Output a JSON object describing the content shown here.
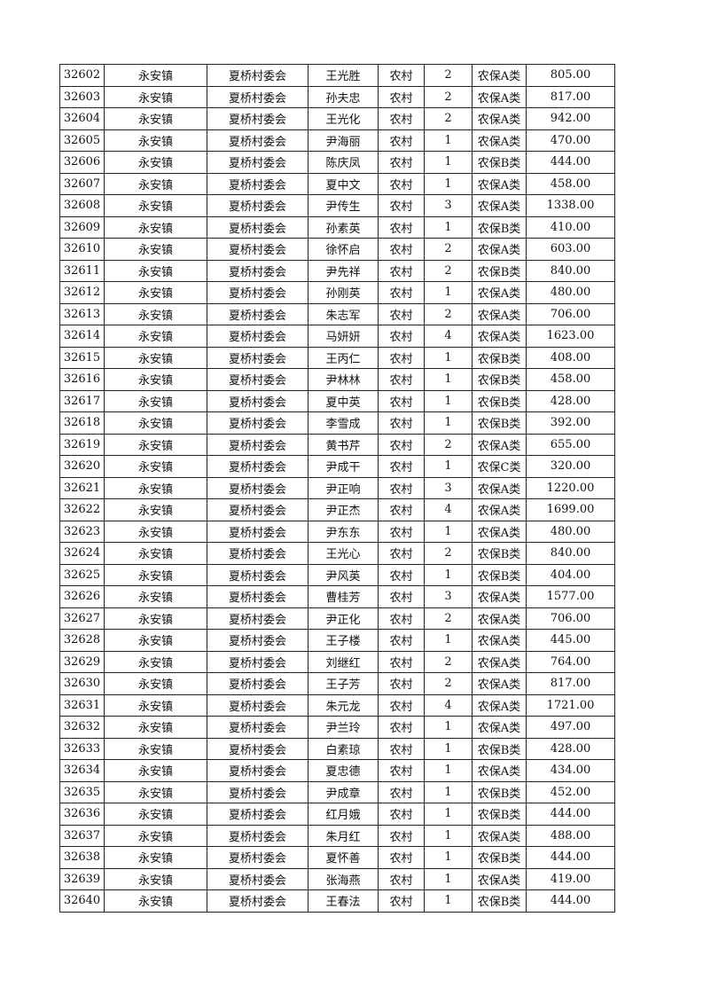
{
  "table": {
    "rows": [
      [
        "32602",
        "永安镇",
        "夏桥村委会",
        "王光胜",
        "农村",
        "2",
        "农保A类",
        "805.00"
      ],
      [
        "32603",
        "永安镇",
        "夏桥村委会",
        "孙夫忠",
        "农村",
        "2",
        "农保A类",
        "817.00"
      ],
      [
        "32604",
        "永安镇",
        "夏桥村委会",
        "王光化",
        "农村",
        "2",
        "农保A类",
        "942.00"
      ],
      [
        "32605",
        "永安镇",
        "夏桥村委会",
        "尹海丽",
        "农村",
        "1",
        "农保A类",
        "470.00"
      ],
      [
        "32606",
        "永安镇",
        "夏桥村委会",
        "陈庆凤",
        "农村",
        "1",
        "农保B类",
        "444.00"
      ],
      [
        "32607",
        "永安镇",
        "夏桥村委会",
        "夏中文",
        "农村",
        "1",
        "农保A类",
        "458.00"
      ],
      [
        "32608",
        "永安镇",
        "夏桥村委会",
        "尹传生",
        "农村",
        "3",
        "农保A类",
        "1338.00"
      ],
      [
        "32609",
        "永安镇",
        "夏桥村委会",
        "孙素英",
        "农村",
        "1",
        "农保B类",
        "410.00"
      ],
      [
        "32610",
        "永安镇",
        "夏桥村委会",
        "徐怀启",
        "农村",
        "2",
        "农保A类",
        "603.00"
      ],
      [
        "32611",
        "永安镇",
        "夏桥村委会",
        "尹先祥",
        "农村",
        "2",
        "农保B类",
        "840.00"
      ],
      [
        "32612",
        "永安镇",
        "夏桥村委会",
        "孙刚英",
        "农村",
        "1",
        "农保A类",
        "480.00"
      ],
      [
        "32613",
        "永安镇",
        "夏桥村委会",
        "朱志军",
        "农村",
        "2",
        "农保A类",
        "706.00"
      ],
      [
        "32614",
        "永安镇",
        "夏桥村委会",
        "马妍妍",
        "农村",
        "4",
        "农保A类",
        "1623.00"
      ],
      [
        "32615",
        "永安镇",
        "夏桥村委会",
        "王丙仁",
        "农村",
        "1",
        "农保B类",
        "408.00"
      ],
      [
        "32616",
        "永安镇",
        "夏桥村委会",
        "尹林林",
        "农村",
        "1",
        "农保B类",
        "458.00"
      ],
      [
        "32617",
        "永安镇",
        "夏桥村委会",
        "夏中英",
        "农村",
        "1",
        "农保B类",
        "428.00"
      ],
      [
        "32618",
        "永安镇",
        "夏桥村委会",
        "李雪成",
        "农村",
        "1",
        "农保B类",
        "392.00"
      ],
      [
        "32619",
        "永安镇",
        "夏桥村委会",
        "黄书芹",
        "农村",
        "2",
        "农保A类",
        "655.00"
      ],
      [
        "32620",
        "永安镇",
        "夏桥村委会",
        "尹成干",
        "农村",
        "1",
        "农保C类",
        "320.00"
      ],
      [
        "32621",
        "永安镇",
        "夏桥村委会",
        "尹正响",
        "农村",
        "3",
        "农保A类",
        "1220.00"
      ],
      [
        "32622",
        "永安镇",
        "夏桥村委会",
        "尹正杰",
        "农村",
        "4",
        "农保A类",
        "1699.00"
      ],
      [
        "32623",
        "永安镇",
        "夏桥村委会",
        "尹东东",
        "农村",
        "1",
        "农保A类",
        "480.00"
      ],
      [
        "32624",
        "永安镇",
        "夏桥村委会",
        "王光心",
        "农村",
        "2",
        "农保B类",
        "840.00"
      ],
      [
        "32625",
        "永安镇",
        "夏桥村委会",
        "尹风英",
        "农村",
        "1",
        "农保B类",
        "404.00"
      ],
      [
        "32626",
        "永安镇",
        "夏桥村委会",
        "曹桂芳",
        "农村",
        "3",
        "农保A类",
        "1577.00"
      ],
      [
        "32627",
        "永安镇",
        "夏桥村委会",
        "尹正化",
        "农村",
        "2",
        "农保A类",
        "706.00"
      ],
      [
        "32628",
        "永安镇",
        "夏桥村委会",
        "王子楼",
        "农村",
        "1",
        "农保A类",
        "445.00"
      ],
      [
        "32629",
        "永安镇",
        "夏桥村委会",
        "刘继红",
        "农村",
        "2",
        "农保A类",
        "764.00"
      ],
      [
        "32630",
        "永安镇",
        "夏桥村委会",
        "王子芳",
        "农村",
        "2",
        "农保A类",
        "817.00"
      ],
      [
        "32631",
        "永安镇",
        "夏桥村委会",
        "朱元龙",
        "农村",
        "4",
        "农保A类",
        "1721.00"
      ],
      [
        "32632",
        "永安镇",
        "夏桥村委会",
        "尹兰玲",
        "农村",
        "1",
        "农保A类",
        "497.00"
      ],
      [
        "32633",
        "永安镇",
        "夏桥村委会",
        "白素琼",
        "农村",
        "1",
        "农保B类",
        "428.00"
      ],
      [
        "32634",
        "永安镇",
        "夏桥村委会",
        "夏忠德",
        "农村",
        "1",
        "农保A类",
        "434.00"
      ],
      [
        "32635",
        "永安镇",
        "夏桥村委会",
        "尹成章",
        "农村",
        "1",
        "农保B类",
        "452.00"
      ],
      [
        "32636",
        "永安镇",
        "夏桥村委会",
        "红月娥",
        "农村",
        "1",
        "农保B类",
        "444.00"
      ],
      [
        "32637",
        "永安镇",
        "夏桥村委会",
        "朱月红",
        "农村",
        "1",
        "农保A类",
        "488.00"
      ],
      [
        "32638",
        "永安镇",
        "夏桥村委会",
        "夏怀善",
        "农村",
        "1",
        "农保B类",
        "444.00"
      ],
      [
        "32639",
        "永安镇",
        "夏桥村委会",
        "张海燕",
        "农村",
        "1",
        "农保A类",
        "419.00"
      ],
      [
        "32640",
        "永安镇",
        "夏桥村委会",
        "王春法",
        "农村",
        "1",
        "农保B类",
        "444.00"
      ]
    ]
  }
}
